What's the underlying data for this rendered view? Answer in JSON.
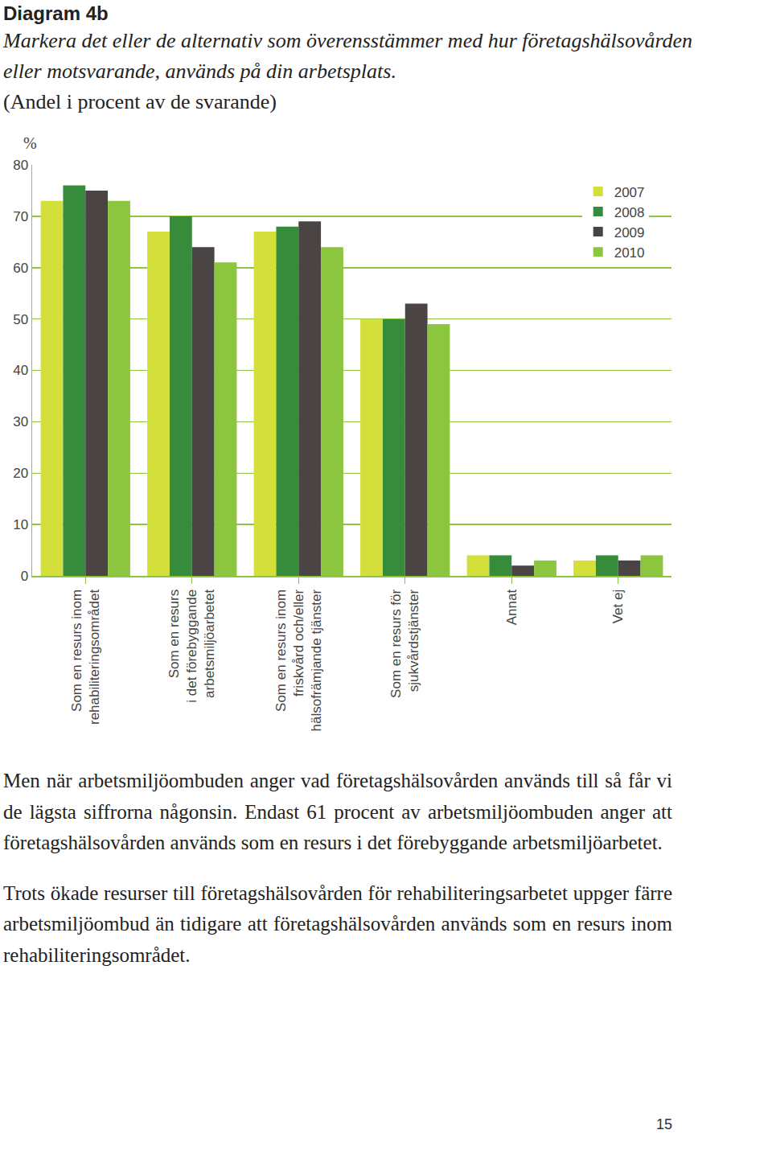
{
  "header": {
    "title": "Diagram 4b",
    "subtitle": "Markera det eller de alternativ som överensstämmer med hur företagshälsovården eller motsvarande, används på din arbetsplats.",
    "note": "(Andel i procent av de svarande)"
  },
  "chart_data": {
    "type": "bar",
    "y_label": "%",
    "categories": [
      "Som en resurs inom\nrehabiliteringsområdet",
      "Som en resurs\ni det förebyggande\narbetsmiljöarbetet",
      "Som en resurs inom\nfriskvård och/eller\nhälsofrämjande tjänster",
      "Som en resurs för\nsjukvårdstjänster",
      "Annat",
      "Vet ej"
    ],
    "series": [
      {
        "name": "2007",
        "color": "#d5df3c",
        "values": [
          73,
          67,
          67,
          50,
          4,
          3
        ]
      },
      {
        "name": "2008",
        "color": "#378c3c",
        "values": [
          76,
          70,
          68,
          50,
          4,
          4
        ]
      },
      {
        "name": "2009",
        "color": "#4b4444",
        "values": [
          75,
          64,
          69,
          53,
          2,
          3
        ]
      },
      {
        "name": "2010",
        "color": "#8cc63f",
        "values": [
          73,
          61,
          64,
          49,
          3,
          4
        ]
      }
    ],
    "ylim": [
      0,
      80
    ],
    "yticks": [
      0,
      10,
      20,
      30,
      40,
      50,
      60,
      70,
      80
    ],
    "grid": true,
    "legend": "top right"
  },
  "paragraphs": [
    "Men när arbetsmiljöombuden anger vad företagshälsovården används till så får vi de lägsta siffrorna någonsin. Endast 61 procent av arbetsmiljöombuden anger att företagshälsovården används som en resurs i det förebyggande arbetsmiljöarbetet.",
    "Trots ökade resurser till företagshälsovården för rehabiliteringsarbetet uppger färre arbetsmiljöombud än tidigare att företagshälsovården används som en resurs inom rehabiliteringsområdet."
  ],
  "page_number": "15"
}
